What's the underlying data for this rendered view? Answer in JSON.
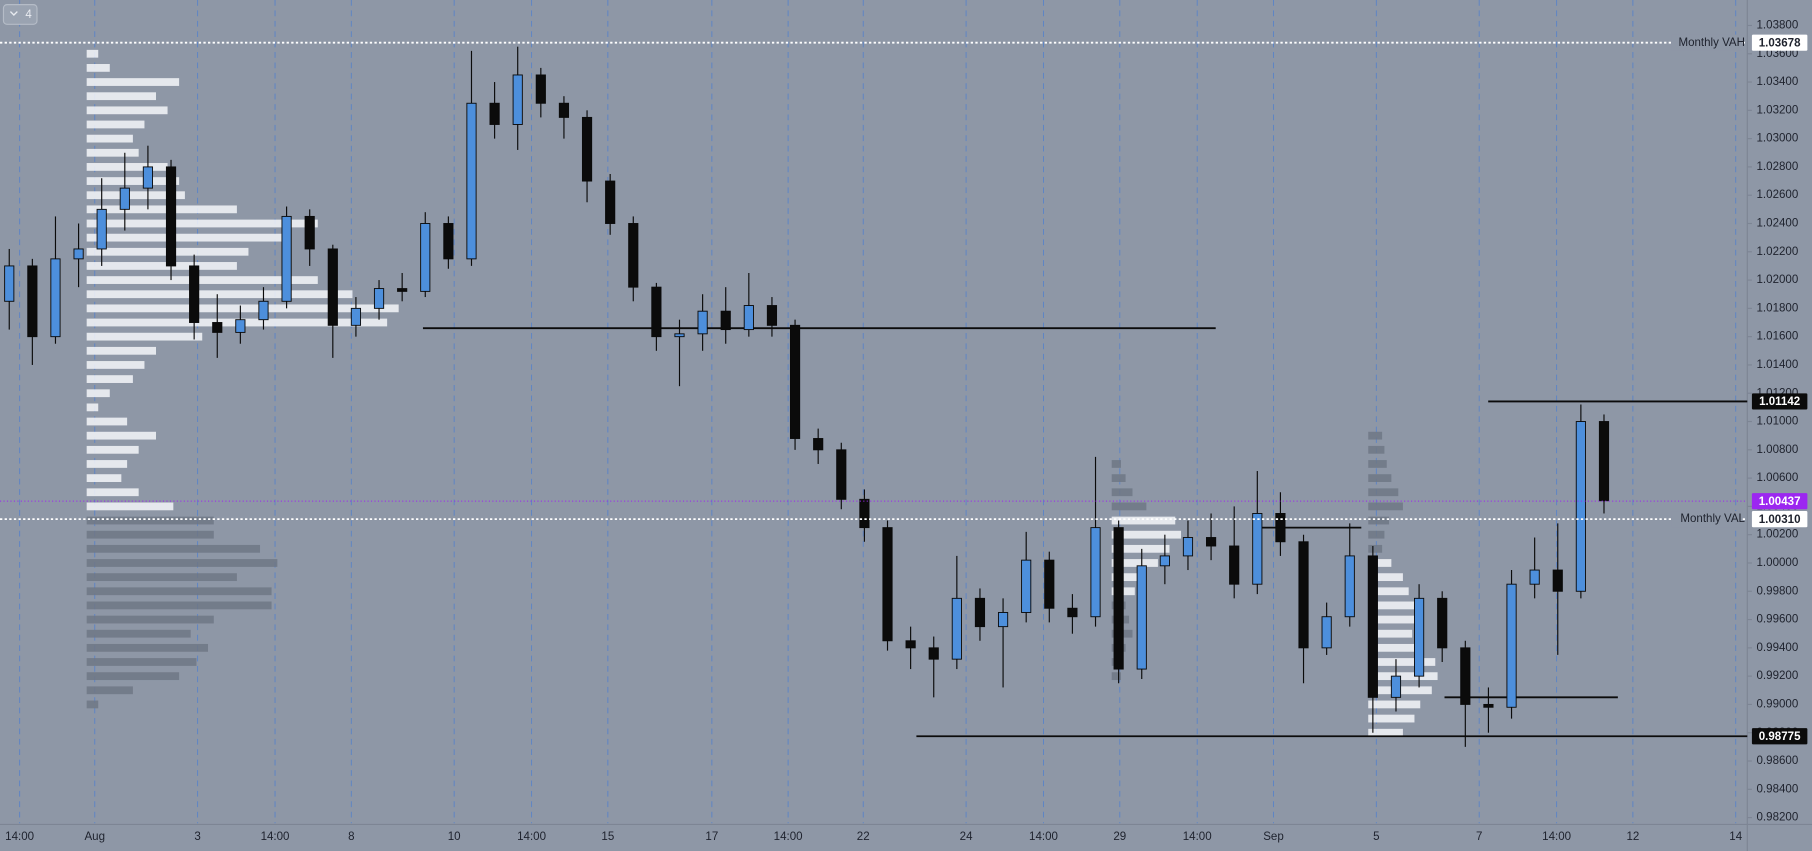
{
  "toolbar": {
    "button_label": "4"
  },
  "chart_data": {
    "type": "candlestick",
    "up_color": "#4d8fdc",
    "down_color": "#0b0b0b",
    "background": "#8e97a6",
    "grid": true,
    "x": [
      0,
      1,
      2,
      3,
      4,
      5,
      6,
      7,
      8,
      9,
      10,
      11,
      12,
      13,
      14,
      15,
      16,
      17,
      18,
      19,
      20,
      21,
      22,
      23,
      24,
      25,
      26,
      27,
      28,
      29,
      30,
      31,
      32,
      33,
      34,
      35,
      36,
      37,
      38,
      39,
      40,
      41,
      42,
      43,
      44,
      45,
      46,
      47,
      48,
      49,
      50,
      51,
      52,
      53,
      54,
      55,
      56,
      57,
      58,
      59,
      60,
      61,
      62,
      63,
      64,
      65,
      66,
      67,
      68,
      69
    ],
    "open": [
      1.0185,
      1.021,
      1.016,
      1.0215,
      1.0222,
      1.025,
      1.0265,
      1.028,
      1.021,
      1.017,
      1.0163,
      1.0172,
      1.0185,
      1.0245,
      1.0222,
      1.0168,
      1.018,
      1.0194,
      1.0192,
      1.024,
      1.0215,
      1.0325,
      1.031,
      1.0345,
      1.0325,
      1.0315,
      1.027,
      1.024,
      1.0195,
      1.016,
      1.0162,
      1.0178,
      1.0165,
      1.0182,
      1.0168,
      1.0088,
      1.008,
      1.0045,
      1.0025,
      0.9945,
      0.994,
      0.9932,
      0.9975,
      0.9955,
      0.9965,
      1.0002,
      0.9968,
      0.9962,
      1.0025,
      0.9925,
      0.9998,
      1.0005,
      1.0018,
      1.0012,
      0.9985,
      1.0035,
      1.0015,
      0.994,
      0.9962,
      1.0005,
      0.9905,
      0.992,
      0.9975,
      0.994,
      0.99,
      0.9898,
      0.9985,
      0.9995,
      0.998,
      1.01
    ],
    "high": [
      1.0222,
      1.0215,
      1.0245,
      1.024,
      1.0272,
      1.029,
      1.0295,
      1.0285,
      1.0218,
      1.019,
      1.0182,
      1.0195,
      1.0252,
      1.025,
      1.0225,
      1.0188,
      1.02,
      1.0205,
      1.0248,
      1.0245,
      1.0362,
      1.034,
      1.0365,
      1.035,
      1.033,
      1.032,
      1.0275,
      1.0245,
      1.0198,
      1.0172,
      1.019,
      1.0195,
      1.0205,
      1.0188,
      1.0172,
      1.0095,
      1.0085,
      1.0052,
      1.003,
      0.9955,
      0.9948,
      1.0005,
      0.9982,
      0.9975,
      1.0022,
      1.0008,
      0.9978,
      1.0075,
      1.003,
      1.001,
      1.002,
      1.003,
      1.0035,
      1.004,
      1.0065,
      1.005,
      1.002,
      0.9972,
      1.0028,
      1.0012,
      0.9932,
      0.9985,
      0.998,
      0.9945,
      0.9912,
      0.9995,
      1.0018,
      1.0028,
      1.0112,
      1.0105
    ],
    "low": [
      1.0165,
      1.014,
      1.0155,
      1.0195,
      1.021,
      1.0235,
      1.025,
      1.02,
      1.0158,
      1.0145,
      1.0155,
      1.0165,
      1.018,
      1.021,
      1.0145,
      1.016,
      1.0172,
      1.0185,
      1.0188,
      1.0208,
      1.021,
      1.03,
      1.0292,
      1.0315,
      1.03,
      1.0255,
      1.0232,
      1.0185,
      1.015,
      1.0125,
      1.015,
      1.0155,
      1.016,
      1.016,
      1.008,
      1.007,
      1.0038,
      1.0015,
      0.9938,
      0.9925,
      0.9905,
      0.9925,
      0.9945,
      0.9912,
      0.9958,
      0.9958,
      0.995,
      0.9955,
      0.9915,
      0.9918,
      0.9985,
      0.9995,
      1.0002,
      0.9975,
      0.9978,
      1.0005,
      0.9915,
      0.9935,
      0.9955,
      0.988,
      0.9895,
      0.9912,
      0.993,
      0.987,
      0.988,
      0.989,
      0.9975,
      0.9935,
      0.9975,
      1.0035
    ],
    "close": [
      1.021,
      1.016,
      1.0215,
      1.0222,
      1.025,
      1.0265,
      1.028,
      1.021,
      1.017,
      1.0163,
      1.0172,
      1.0185,
      1.0245,
      1.0222,
      1.0168,
      1.018,
      1.0194,
      1.0192,
      1.024,
      1.0215,
      1.0325,
      1.031,
      1.0345,
      1.0325,
      1.0315,
      1.027,
      1.024,
      1.0195,
      1.016,
      1.0162,
      1.0178,
      1.0165,
      1.0182,
      1.0168,
      1.0088,
      1.008,
      1.0045,
      1.0025,
      0.9945,
      0.994,
      0.9932,
      0.9975,
      0.9955,
      0.9965,
      1.0002,
      0.9968,
      0.9962,
      1.0025,
      0.9925,
      0.9998,
      1.0005,
      1.0018,
      1.0012,
      0.9985,
      1.0035,
      1.0015,
      0.994,
      0.9962,
      1.0005,
      0.9905,
      0.992,
      0.9975,
      0.994,
      0.99,
      0.9898,
      0.9985,
      0.9995,
      0.998,
      1.01,
      1.0044
    ],
    "xlim": [
      -0.4,
      75.2
    ],
    "xticks": [
      {
        "value": 0.45,
        "label": "14:00"
      },
      {
        "value": 3.7,
        "label": "Aug"
      },
      {
        "value": 8.15,
        "label": "3"
      },
      {
        "value": 11.5,
        "label": "14:00"
      },
      {
        "value": 14.8,
        "label": "8"
      },
      {
        "value": 19.25,
        "label": "10"
      },
      {
        "value": 22.6,
        "label": "14:00"
      },
      {
        "value": 25.9,
        "label": "15"
      },
      {
        "value": 30.4,
        "label": "17"
      },
      {
        "value": 33.7,
        "label": "14:00"
      },
      {
        "value": 36.95,
        "label": "22"
      },
      {
        "value": 41.4,
        "label": "24"
      },
      {
        "value": 44.75,
        "label": "14:00"
      },
      {
        "value": 48.05,
        "label": "29"
      },
      {
        "value": 51.4,
        "label": "14:00"
      },
      {
        "value": 54.7,
        "label": "Sep"
      },
      {
        "value": 59.15,
        "label": "5"
      },
      {
        "value": 63.6,
        "label": "7"
      },
      {
        "value": 66.95,
        "label": "14:00"
      },
      {
        "value": 70.25,
        "label": "12"
      },
      {
        "value": 74.7,
        "label": "14"
      }
    ],
    "ylim": [
      0.9816,
      1.0398
    ],
    "yticks": [
      {
        "value": 0.982,
        "label": "0.98200"
      },
      {
        "value": 0.984,
        "label": "0.98400"
      },
      {
        "value": 0.986,
        "label": "0.98600"
      },
      {
        "value": 0.988,
        "label": "0.98800"
      },
      {
        "value": 0.99,
        "label": "0.99000"
      },
      {
        "value": 0.992,
        "label": "0.99200"
      },
      {
        "value": 0.994,
        "label": "0.99400"
      },
      {
        "value": 0.996,
        "label": "0.99600"
      },
      {
        "value": 0.998,
        "label": "0.99800"
      },
      {
        "value": 1,
        "label": "1.00000"
      },
      {
        "value": 1.002,
        "label": "1.00200"
      },
      {
        "value": 1.004,
        "label": "1.00400"
      },
      {
        "value": 1.006,
        "label": "1.00600"
      },
      {
        "value": 1.008,
        "label": "1.00800"
      },
      {
        "value": 1.01,
        "label": "1.01000"
      },
      {
        "value": 1.012,
        "label": "1.01200"
      },
      {
        "value": 1.014,
        "label": "1.01400"
      },
      {
        "value": 1.016,
        "label": "1.01600"
      },
      {
        "value": 1.018,
        "label": "1.01800"
      },
      {
        "value": 1.02,
        "label": "1.02000"
      },
      {
        "value": 1.022,
        "label": "1.02200"
      },
      {
        "value": 1.024,
        "label": "1.02400"
      },
      {
        "value": 1.026,
        "label": "1.02600"
      },
      {
        "value": 1.028,
        "label": "1.02800"
      },
      {
        "value": 1.03,
        "label": "1.03000"
      },
      {
        "value": 1.032,
        "label": "1.03200"
      },
      {
        "value": 1.034,
        "label": "1.03400"
      },
      {
        "value": 1.036,
        "label": "1.03600"
      },
      {
        "value": 1.038,
        "label": "1.03800"
      }
    ],
    "levels": [
      {
        "name": "Monthly VAH",
        "value": 1.03678,
        "label": "1.03678",
        "color": "#ffffff",
        "text_color": "#1e222d",
        "style": "dotted"
      },
      {
        "value": 1.01142,
        "label": "1.01142",
        "color": "#0b0b0b",
        "text_color": "#ffffff",
        "style": "solid",
        "x_from": 63.99
      },
      {
        "value": 1.00437,
        "label": "1.00437",
        "color": "#9c27f0",
        "text_color": "#ffffff",
        "style": "dotted-thin"
      },
      {
        "name": "Monthly VAL",
        "value": 1.0031,
        "label": "1.00310",
        "color": "#ffffff",
        "text_color": "#1e222d",
        "style": "dotted"
      },
      {
        "value": 0.98775,
        "label": "0.98775",
        "color": "#0b0b0b",
        "text_color": "#ffffff",
        "style": "solid",
        "x_from": 39.25
      }
    ],
    "lines": [
      {
        "value": 1.0166,
        "x_from": 17.9,
        "x_to": 52.2
      },
      {
        "value": 1.0025,
        "x_from": 54.1,
        "x_to": 58.5
      },
      {
        "value": 0.9905,
        "x_from": 62.1,
        "x_to": 69.6
      }
    ],
    "profiles": [
      {
        "x": 3.35,
        "segments": [
          {
            "color": "#f4f6f9",
            "prices": [
              1.036,
              1.035,
              1.034,
              1.033,
              1.032,
              1.031,
              1.03,
              1.029,
              1.028,
              1.027,
              1.026,
              1.025,
              1.024,
              1.023,
              1.022,
              1.021,
              1.02,
              1.019,
              1.018,
              1.017,
              1.016,
              1.015,
              1.014,
              1.013,
              1.012,
              1.011,
              1.01,
              1.009,
              1.008,
              1.007,
              1.006,
              1.005,
              1.004
            ],
            "volumes": [
              10,
              20,
              80,
              60,
              70,
              50,
              40,
              45,
              70,
              80,
              85,
              130,
              200,
              170,
              140,
              130,
              200,
              230,
              270,
              260,
              100,
              60,
              50,
              40,
              20,
              10,
              35,
              60,
              45,
              35,
              30,
              45,
              75
            ]
          },
          {
            "color": "#6f7785",
            "prices": [
              1.003,
              1.002,
              1.001,
              1,
              0.999,
              0.998,
              0.997,
              0.996,
              0.995,
              0.994,
              0.993,
              0.992,
              0.991,
              0.99
            ],
            "volumes": [
              110,
              110,
              150,
              165,
              130,
              160,
              160,
              110,
              90,
              105,
              95,
              80,
              40,
              10
            ]
          }
        ]
      },
      {
        "x": 47.7,
        "segments": [
          {
            "color": "#6f7785",
            "prices": [
              1.007,
              1.006,
              1.005,
              1.004
            ],
            "volumes": [
              8,
              12,
              18,
              30
            ]
          },
          {
            "color": "#f4f6f9",
            "prices": [
              1.003,
              1.002,
              1.001,
              1,
              0.999,
              0.998
            ],
            "volumes": [
              55,
              60,
              50,
              40,
              30,
              20
            ]
          },
          {
            "color": "#6f7785",
            "prices": [
              0.997,
              0.996,
              0.995,
              0.994,
              0.993,
              0.992
            ],
            "volumes": [
              12,
              15,
              18,
              12,
              10,
              8
            ]
          }
        ]
      },
      {
        "x": 58.8,
        "segments": [
          {
            "color": "#6f7785",
            "prices": [
              1.009,
              1.008,
              1.007,
              1.006,
              1.005,
              1.004,
              1.003,
              1.002,
              1.001
            ],
            "volumes": [
              12,
              14,
              16,
              20,
              26,
              30,
              18,
              14,
              12
            ]
          },
          {
            "color": "#f4f6f9",
            "prices": [
              1,
              0.999,
              0.998,
              0.997,
              0.996,
              0.995,
              0.994,
              0.993,
              0.992,
              0.991,
              0.99,
              0.989,
              0.988
            ],
            "volumes": [
              20,
              30,
              35,
              45,
              40,
              38,
              48,
              58,
              60,
              55,
              45,
              40,
              30
            ]
          }
        ]
      }
    ]
  }
}
